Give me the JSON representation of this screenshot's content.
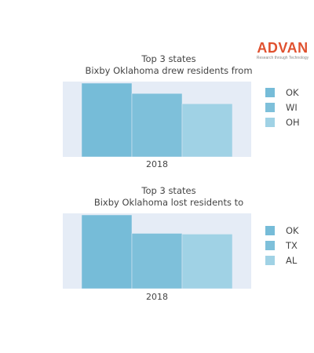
{
  "brand": {
    "name": "ADVAN",
    "tagline": "Research through Technology",
    "color": "#e0512f"
  },
  "chart_data": [
    {
      "type": "bar",
      "title_line1": "Top 3 states",
      "title_line2": "Bixby Oklahoma drew residents from",
      "categories": [
        "2018"
      ],
      "series": [
        {
          "name": "OK",
          "values": [
            100
          ],
          "color": "#76bcd8"
        },
        {
          "name": "WI",
          "values": [
            86
          ],
          "color": "#7ec0da"
        },
        {
          "name": "OH",
          "values": [
            72
          ],
          "color": "#a0d2e5"
        }
      ],
      "ylim": [
        0,
        100
      ],
      "legend": "right"
    },
    {
      "type": "bar",
      "title_line1": "Top 3 states",
      "title_line2": "Bixby Oklahoma lost residents to",
      "categories": [
        "2018"
      ],
      "series": [
        {
          "name": "OK",
          "values": [
            100
          ],
          "color": "#76bcd8"
        },
        {
          "name": "TX",
          "values": [
            75
          ],
          "color": "#7ec0da"
        },
        {
          "name": "AL",
          "values": [
            74
          ],
          "color": "#a0d2e5"
        }
      ],
      "ylim": [
        0,
        100
      ],
      "legend": "right"
    }
  ]
}
